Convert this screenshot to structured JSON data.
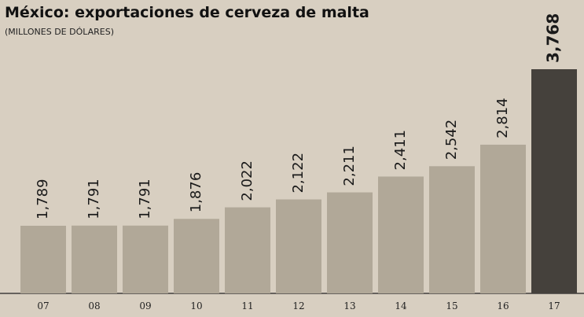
{
  "chart_data": {
    "type": "bar",
    "title": "México: exportaciones de cerveza de malta",
    "subtitle": "(MILLONES DE DÓLARES)",
    "categories": [
      "07",
      "08",
      "09",
      "10",
      "11",
      "12",
      "13",
      "14",
      "15",
      "16",
      "17"
    ],
    "values": [
      1789,
      1791,
      1791,
      1876,
      2022,
      2122,
      2211,
      2411,
      2542,
      2814,
      3768
    ],
    "value_labels": [
      "1,789",
      "1,791",
      "1,791",
      "1,876",
      "2,022",
      "2,122",
      "2,211",
      "2,411",
      "2,542",
      "2,814",
      "3,768"
    ],
    "colors": [
      "#b1a898",
      "#b1a898",
      "#b1a898",
      "#b1a898",
      "#b1a898",
      "#b1a898",
      "#b1a898",
      "#b1a898",
      "#b1a898",
      "#b1a898",
      "#45413c"
    ]
  }
}
